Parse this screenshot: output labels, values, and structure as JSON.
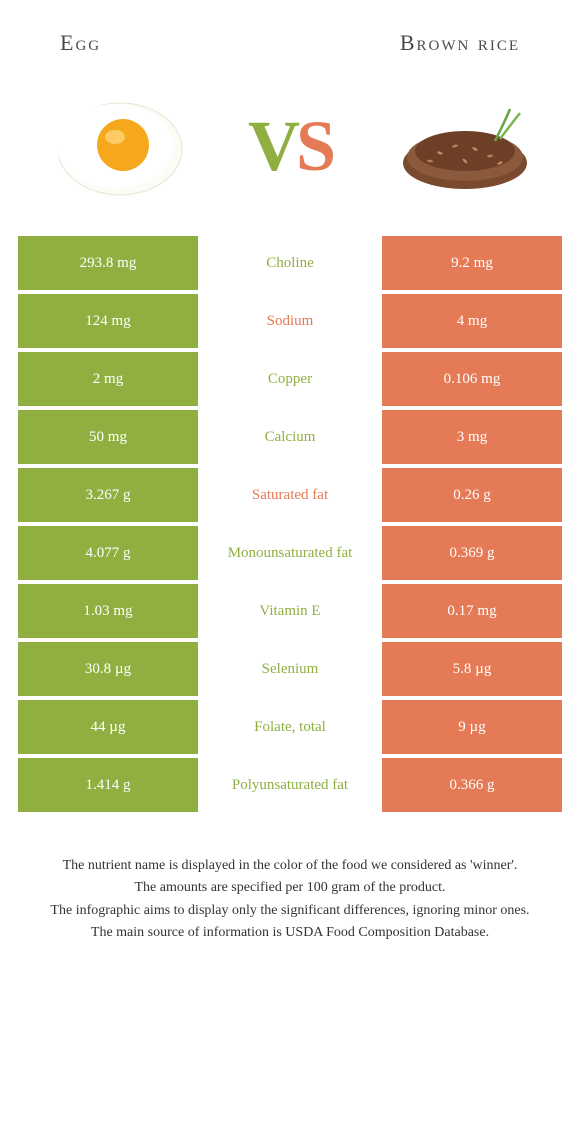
{
  "colors": {
    "left": "#8fb041",
    "right": "#e47a56",
    "bg": "#ffffff",
    "text": "#333333",
    "header": "#4a4a4a"
  },
  "header": {
    "left_title": "Egg",
    "right_title": "Brown rice"
  },
  "vs": {
    "v": "V",
    "s": "S"
  },
  "rows": [
    {
      "left": "293.8 mg",
      "label": "Choline",
      "right": "9.2 mg",
      "winner": "left"
    },
    {
      "left": "124 mg",
      "label": "Sodium",
      "right": "4 mg",
      "winner": "right"
    },
    {
      "left": "2 mg",
      "label": "Copper",
      "right": "0.106 mg",
      "winner": "left"
    },
    {
      "left": "50 mg",
      "label": "Calcium",
      "right": "3 mg",
      "winner": "left"
    },
    {
      "left": "3.267 g",
      "label": "Saturated fat",
      "right": "0.26 g",
      "winner": "right"
    },
    {
      "left": "4.077 g",
      "label": "Monounsaturated fat",
      "right": "0.369 g",
      "winner": "left"
    },
    {
      "left": "1.03 mg",
      "label": "Vitamin E",
      "right": "0.17 mg",
      "winner": "left"
    },
    {
      "left": "30.8 µg",
      "label": "Selenium",
      "right": "5.8 µg",
      "winner": "left"
    },
    {
      "left": "44 µg",
      "label": "Folate, total",
      "right": "9 µg",
      "winner": "left"
    },
    {
      "left": "1.414 g",
      "label": "Polyunsaturated fat",
      "right": "0.366 g",
      "winner": "left"
    }
  ],
  "footer": {
    "line1": "The nutrient name is displayed in the color of the food we considered as 'winner'.",
    "line2": "The amounts are specified per 100 gram of the product.",
    "line3": "The infographic aims to display only the significant differences, ignoring minor ones.",
    "line4": "The main source of information is USDA Food Composition Database."
  }
}
